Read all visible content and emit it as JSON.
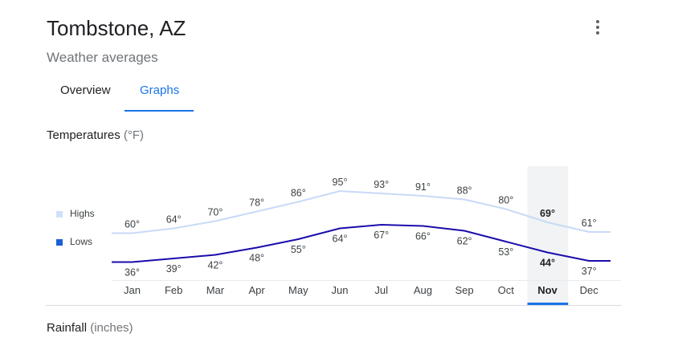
{
  "header": {
    "title": "Tombstone, AZ",
    "subtitle": "Weather averages"
  },
  "tabs": [
    {
      "label": "Overview",
      "selected": false
    },
    {
      "label": "Graphs",
      "selected": true
    }
  ],
  "temperatures": {
    "title": "Temperatures",
    "unit": "(°F)"
  },
  "legend": {
    "highs": "Highs",
    "lows": "Lows"
  },
  "rainfall": {
    "title": "Rainfall",
    "unit": "(inches)"
  },
  "colors": {
    "accent": "#1a73e8",
    "highs_line": "#c8daf7",
    "lows_line": "#1a0dab",
    "highs_swatch": "#cfe0fa",
    "lows_swatch": "#1a5fd6",
    "selected_column": "#f1f3f4"
  },
  "chart_data": {
    "type": "line",
    "categories": [
      "Jan",
      "Feb",
      "Mar",
      "Apr",
      "May",
      "Jun",
      "Jul",
      "Aug",
      "Sep",
      "Oct",
      "Nov",
      "Dec"
    ],
    "series": [
      {
        "name": "Highs",
        "values": [
          60,
          64,
          70,
          78,
          86,
          95,
          93,
          91,
          88,
          80,
          69,
          61
        ],
        "labels": [
          "60°",
          "64°",
          "70°",
          "78°",
          "86°",
          "95°",
          "93°",
          "91°",
          "88°",
          "80°",
          "69°",
          "61°"
        ]
      },
      {
        "name": "Lows",
        "values": [
          36,
          39,
          42,
          48,
          55,
          64,
          67,
          66,
          62,
          53,
          44,
          37
        ],
        "labels": [
          "36°",
          "39°",
          "42°",
          "48°",
          "55°",
          "64°",
          "67°",
          "66°",
          "62°",
          "53°",
          "44°",
          "37°"
        ]
      }
    ],
    "selected_category": "Nov",
    "unit": "°F"
  }
}
